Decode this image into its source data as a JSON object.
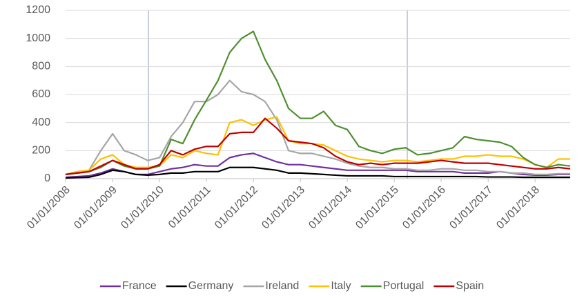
{
  "chart_data": {
    "type": "line",
    "x": [
      "01/01/2008",
      "01/04/2008",
      "01/07/2008",
      "01/10/2008",
      "01/01/2009",
      "01/04/2009",
      "01/07/2009",
      "01/10/2009",
      "01/01/2010",
      "01/04/2010",
      "01/07/2010",
      "01/10/2010",
      "01/01/2011",
      "01/04/2011",
      "01/07/2011",
      "01/10/2011",
      "01/01/2012",
      "01/04/2012",
      "01/07/2012",
      "01/10/2012",
      "01/01/2013",
      "01/04/2013",
      "01/07/2013",
      "01/10/2013",
      "01/01/2014",
      "01/04/2014",
      "01/07/2014",
      "01/10/2014",
      "01/01/2015",
      "01/04/2015",
      "01/07/2015",
      "01/10/2015",
      "01/01/2016",
      "01/04/2016",
      "01/07/2016",
      "01/10/2016",
      "01/01/2017",
      "01/04/2017",
      "01/07/2017",
      "01/10/2017",
      "01/01/2018",
      "01/04/2018",
      "01/07/2018",
      "01/10/2018"
    ],
    "series": [
      {
        "name": "France",
        "color": "#7030a0",
        "values": [
          10,
          15,
          20,
          40,
          70,
          50,
          30,
          30,
          50,
          70,
          80,
          100,
          90,
          90,
          150,
          170,
          180,
          150,
          120,
          100,
          100,
          90,
          80,
          70,
          60,
          60,
          60,
          60,
          60,
          60,
          50,
          50,
          50,
          50,
          40,
          40,
          40,
          50,
          40,
          30,
          25,
          25,
          30,
          30
        ]
      },
      {
        "name": "Germany",
        "color": "#000000",
        "values": [
          5,
          8,
          10,
          30,
          60,
          50,
          30,
          25,
          30,
          40,
          40,
          50,
          50,
          50,
          80,
          80,
          80,
          70,
          60,
          40,
          40,
          35,
          30,
          25,
          20,
          20,
          20,
          20,
          15,
          15,
          15,
          15,
          15,
          15,
          15,
          15,
          12,
          12,
          12,
          10,
          10,
          10,
          10,
          10
        ]
      },
      {
        "name": "Ireland",
        "color": "#a6a6a6",
        "values": [
          30,
          50,
          60,
          200,
          320,
          200,
          170,
          130,
          150,
          300,
          400,
          550,
          550,
          600,
          700,
          620,
          600,
          550,
          420,
          200,
          180,
          180,
          160,
          140,
          110,
          90,
          80,
          80,
          70,
          70,
          60,
          60,
          70,
          70,
          60,
          60,
          50,
          50,
          40,
          40,
          30,
          30,
          35,
          35
        ]
      },
      {
        "name": "Italy",
        "color": "#ffc000",
        "values": [
          30,
          50,
          60,
          140,
          170,
          100,
          80,
          80,
          90,
          170,
          150,
          200,
          180,
          170,
          400,
          420,
          380,
          420,
          440,
          270,
          250,
          250,
          240,
          200,
          160,
          140,
          130,
          120,
          130,
          130,
          120,
          130,
          140,
          140,
          160,
          160,
          170,
          160,
          160,
          140,
          100,
          80,
          140,
          140
        ]
      },
      {
        "name": "Portugal",
        "color": "#4e8f2f",
        "values": [
          30,
          40,
          50,
          80,
          130,
          90,
          70,
          70,
          90,
          280,
          250,
          420,
          560,
          700,
          900,
          1000,
          1050,
          850,
          700,
          500,
          430,
          430,
          480,
          380,
          350,
          230,
          200,
          180,
          210,
          220,
          170,
          180,
          200,
          220,
          300,
          280,
          270,
          260,
          230,
          150,
          100,
          80,
          100,
          90
        ]
      },
      {
        "name": "Spain",
        "color": "#c00000",
        "values": [
          30,
          40,
          50,
          90,
          130,
          100,
          70,
          70,
          100,
          200,
          170,
          210,
          230,
          230,
          320,
          330,
          330,
          430,
          360,
          270,
          260,
          250,
          220,
          160,
          120,
          100,
          110,
          100,
          110,
          110,
          110,
          120,
          130,
          120,
          110,
          110,
          110,
          100,
          90,
          80,
          70,
          70,
          80,
          70
        ]
      }
    ],
    "xlim": [
      "01/01/2008",
      "01/10/2018"
    ],
    "xticks": [
      "01/01/2008",
      "01/01/2009",
      "01/01/2010",
      "01/01/2011",
      "01/01/2012",
      "01/01/2013",
      "01/01/2014",
      "01/01/2015",
      "01/01/2016",
      "01/01/2017",
      "01/01/2018"
    ],
    "ylim": [
      0,
      1200
    ],
    "yticks": [
      0,
      200,
      400,
      600,
      800,
      1000,
      1200
    ],
    "grid": true,
    "legend": "bottom"
  }
}
